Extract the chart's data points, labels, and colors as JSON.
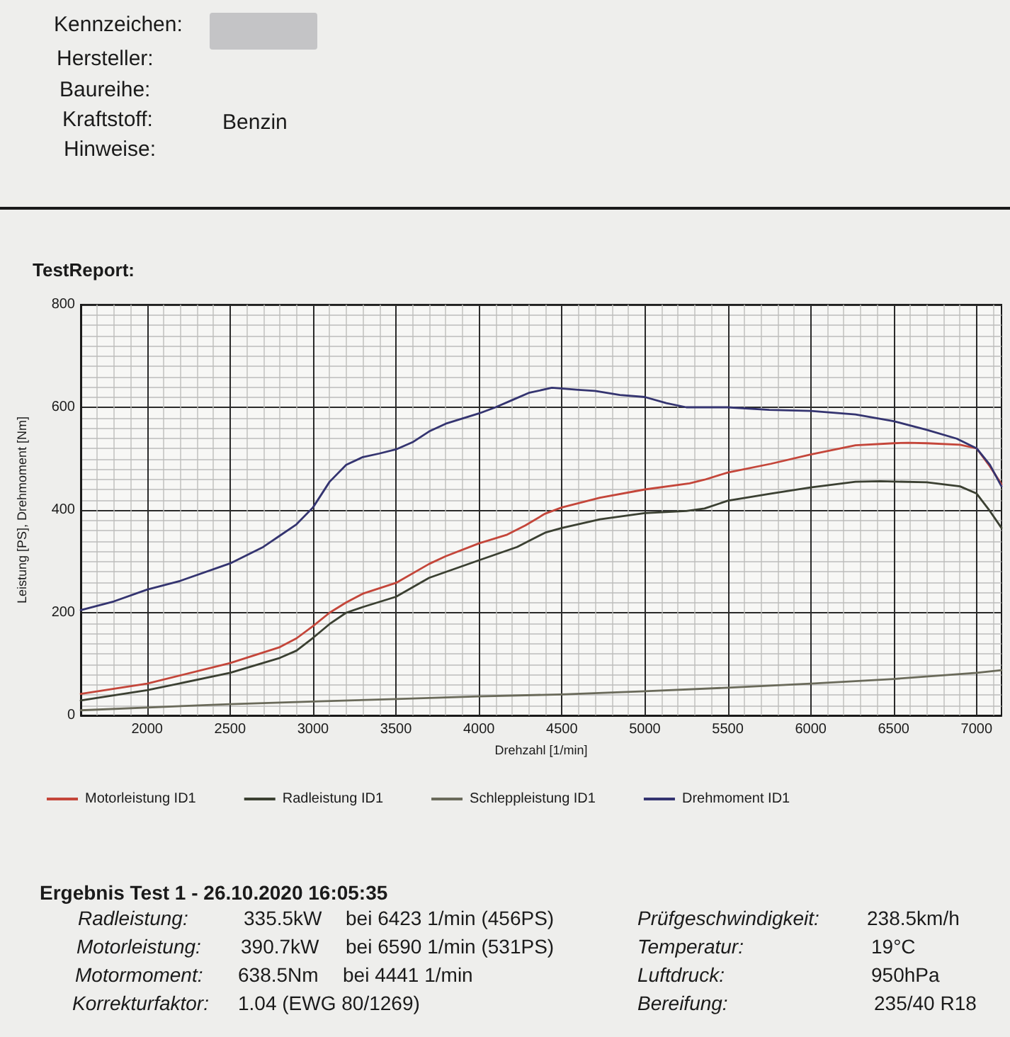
{
  "chart_data": {
    "type": "line",
    "title": "TestReport:",
    "xlabel": "Drehzahl [1/min]",
    "ylabel": "Leistung [PS], Drehmoment [Nm]",
    "xlim": [
      1600,
      7150
    ],
    "xticks": [
      {
        "value": 1700,
        "label": null
      },
      {
        "value": 1800,
        "label": null
      },
      {
        "value": 1900,
        "label": null
      },
      2000,
      {
        "value": 2100,
        "label": null
      },
      {
        "value": 2200,
        "label": null
      },
      {
        "value": 2300,
        "label": null
      },
      {
        "value": 2400,
        "label": null
      },
      2500,
      {
        "value": 2600,
        "label": null
      },
      {
        "value": 2700,
        "label": null
      },
      {
        "value": 2800,
        "label": null
      },
      {
        "value": 2900,
        "label": null
      },
      3000,
      {
        "value": 3100,
        "label": null
      },
      {
        "value": 3200,
        "label": null
      },
      {
        "value": 3300,
        "label": null
      },
      {
        "value": 3400,
        "label": null
      },
      3500,
      {
        "value": 3600,
        "label": null
      },
      {
        "value": 3700,
        "label": null
      },
      {
        "value": 3800,
        "label": null
      },
      {
        "value": 3900,
        "label": null
      },
      4000,
      {
        "value": 4100,
        "label": null
      },
      {
        "value": 4200,
        "label": null
      },
      {
        "value": 4300,
        "label": null
      },
      {
        "value": 4400,
        "label": null
      },
      4500,
      {
        "value": 4600,
        "label": null
      },
      {
        "value": 4700,
        "label": null
      },
      {
        "value": 4800,
        "label": null
      },
      {
        "value": 4900,
        "label": null
      },
      5000,
      {
        "value": 5100,
        "label": null
      },
      {
        "value": 5200,
        "label": null
      },
      {
        "value": 5300,
        "label": null
      },
      {
        "value": 5400,
        "label": null
      },
      5500,
      {
        "value": 5600,
        "label": null
      },
      {
        "value": 5700,
        "label": null
      },
      {
        "value": 5800,
        "label": null
      },
      {
        "value": 5900,
        "label": null
      },
      6000,
      {
        "value": 6100,
        "label": null
      },
      {
        "value": 6200,
        "label": null
      },
      {
        "value": 6300,
        "label": null
      },
      {
        "value": 6400,
        "label": null
      },
      6500,
      {
        "value": 6600,
        "label": null
      },
      {
        "value": 6700,
        "label": null
      },
      {
        "value": 6800,
        "label": null
      },
      {
        "value": 6900,
        "label": null
      },
      7000,
      {
        "value": 7100,
        "label": null
      }
    ],
    "ylim": [
      0,
      800
    ],
    "yticks": [
      0,
      {
        "value": 20,
        "label": null
      },
      {
        "value": 40,
        "label": null
      },
      {
        "value": 60,
        "label": null
      },
      {
        "value": 80,
        "label": null
      },
      {
        "value": 100,
        "label": null
      },
      {
        "value": 120,
        "label": null
      },
      {
        "value": 140,
        "label": null
      },
      {
        "value": 160,
        "label": null
      },
      {
        "value": 180,
        "label": null
      },
      200,
      {
        "value": 220,
        "label": null
      },
      {
        "value": 240,
        "label": null
      },
      {
        "value": 260,
        "label": null
      },
      {
        "value": 280,
        "label": null
      },
      {
        "value": 300,
        "label": null
      },
      {
        "value": 320,
        "label": null
      },
      {
        "value": 340,
        "label": null
      },
      {
        "value": 360,
        "label": null
      },
      {
        "value": 380,
        "label": null
      },
      400,
      {
        "value": 420,
        "label": null
      },
      {
        "value": 440,
        "label": null
      },
      {
        "value": 460,
        "label": null
      },
      {
        "value": 480,
        "label": null
      },
      {
        "value": 500,
        "label": null
      },
      {
        "value": 520,
        "label": null
      },
      {
        "value": 540,
        "label": null
      },
      {
        "value": 560,
        "label": null
      },
      {
        "value": 580,
        "label": null
      },
      600,
      {
        "value": 620,
        "label": null
      },
      {
        "value": 640,
        "label": null
      },
      {
        "value": 660,
        "label": null
      },
      {
        "value": 680,
        "label": null
      },
      {
        "value": 700,
        "label": null
      },
      {
        "value": 720,
        "label": null
      },
      {
        "value": 740,
        "label": null
      },
      {
        "value": 760,
        "label": null
      },
      {
        "value": 780,
        "label": null
      },
      800
    ],
    "grid": true,
    "legend": "bottom",
    "marker": "none",
    "line_style": "solid",
    "series": [
      {
        "name": "Motorleistung ID1",
        "color": "#c4463a",
        "x": [
          1600,
          2000,
          2500,
          2800,
          2900,
          3000,
          3100,
          3200,
          3300,
          3500,
          3700,
          3800,
          4000,
          4170,
          4280,
          4400,
          4500,
          4730,
          5000,
          5270,
          5360,
          5500,
          5760,
          6000,
          6270,
          6500,
          6590,
          6700,
          6900,
          7000,
          7080,
          7150
        ],
        "values": [
          42,
          62,
          102,
          133,
          150,
          174,
          200,
          220,
          237,
          258,
          295,
          310,
          335,
          352,
          370,
          393,
          405,
          424,
          440,
          452,
          459,
          473,
          490,
          508,
          526,
          530,
          531,
          530,
          527,
          520,
          485,
          450
        ]
      },
      {
        "name": "Radleistung ID1",
        "color": "#3b4032",
        "x": [
          1600,
          2000,
          2500,
          2800,
          2900,
          3000,
          3100,
          3200,
          3300,
          3500,
          3700,
          4000,
          4230,
          4400,
          4500,
          4730,
          5000,
          5250,
          5360,
          5500,
          5760,
          6000,
          6270,
          6420,
          6700,
          6900,
          7000,
          7080,
          7150
        ],
        "values": [
          29,
          49,
          83,
          112,
          126,
          151,
          178,
          200,
          211,
          231,
          268,
          302,
          328,
          356,
          365,
          382,
          394,
          398,
          403,
          418,
          432,
          444,
          455,
          456,
          454,
          446,
          432,
          398,
          365
        ]
      },
      {
        "name": "Schleppleistung ID1",
        "color": "#6a6a5a",
        "x": [
          1600,
          2500,
          3000,
          3500,
          4000,
          4500,
          5000,
          5500,
          6000,
          6500,
          7000,
          7150
        ],
        "values": [
          10,
          22,
          27,
          32,
          37,
          41,
          47,
          54,
          62,
          71,
          83,
          88
        ]
      },
      {
        "name": "Drehmoment ID1",
        "color": "#343470",
        "x": [
          1600,
          1800,
          2000,
          2200,
          2500,
          2700,
          2800,
          2900,
          3000,
          3100,
          3200,
          3300,
          3400,
          3500,
          3600,
          3700,
          3800,
          3900,
          4000,
          4100,
          4200,
          4300,
          4440,
          4600,
          4700,
          4850,
          5000,
          5130,
          5250,
          5500,
          5750,
          6000,
          6270,
          6500,
          6700,
          6880,
          7000,
          7080,
          7150
        ],
        "values": [
          205,
          222,
          245,
          262,
          296,
          328,
          350,
          372,
          405,
          455,
          488,
          503,
          510,
          518,
          532,
          553,
          568,
          578,
          588,
          600,
          614,
          628,
          638,
          634,
          632,
          624,
          620,
          608,
          600,
          600,
          595,
          593,
          586,
          573,
          556,
          539,
          520,
          488,
          446
        ]
      }
    ],
    "annotations": [
      "Kennzeichen:",
      "Hersteller:",
      "Baureihe:",
      "Kraftstoff:",
      "Hinweise:",
      "Benzin",
      "Ergebnis Test 1 - 26.10.2020 16:05:35",
      "Radleistung:",
      "335.5kW",
      "bei 6423 1/min (456PS)",
      "Motorleistung:",
      "390.7kW",
      "bei 6590 1/min (531PS)",
      "Motormoment:",
      "638.5Nm",
      "bei 4441 1/min",
      "Korrekturfaktor:",
      "1.04 (EWG 80/1269)",
      "Prüfgeschwindigkeit:",
      "238.5km/h",
      "Temperatur:",
      "19°C",
      "Luftdruck:",
      "950hPa",
      "Bereifung:",
      "235/40 R18"
    ]
  }
}
